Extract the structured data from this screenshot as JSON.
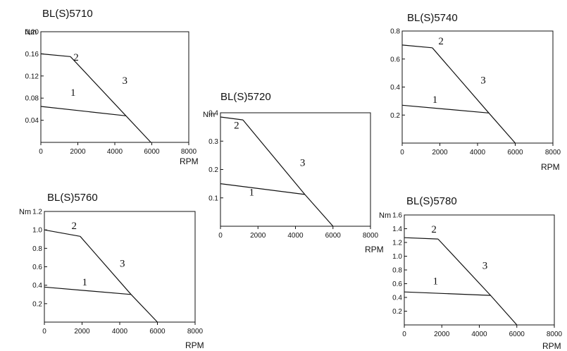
{
  "chart_data": [
    {
      "type": "line",
      "title": "BL(S)5710",
      "ylabel": "Nm",
      "xlabel": "RPM",
      "xlim": [
        0,
        8000
      ],
      "ylim": [
        0,
        0.2
      ],
      "xticks": [
        0,
        2000,
        4000,
        6000,
        8000
      ],
      "xtick_labels": [
        "0",
        "2000",
        "4000",
        "6000",
        "8000"
      ],
      "yticks": [
        0.04,
        0.08,
        0.12,
        0.16,
        0.2
      ],
      "ytick_labels": [
        "0.04",
        "0.08",
        "0.12",
        "0.16",
        "0,20"
      ],
      "series": [
        {
          "name": "1",
          "x": [
            0,
            4600
          ],
          "y": [
            0.065,
            0.048
          ]
        },
        {
          "name": "2",
          "x": [
            0,
            1600
          ],
          "y": [
            0.16,
            0.155
          ]
        },
        {
          "name": "3",
          "x": [
            1600,
            4600,
            5950
          ],
          "y": [
            0.155,
            0.048,
            0
          ]
        }
      ]
    },
    {
      "type": "line",
      "title": "BL(S)5720",
      "ylabel": "Nm",
      "xlabel": "RPM",
      "xlim": [
        0,
        8000
      ],
      "ylim": [
        0,
        0.4
      ],
      "xticks": [
        0,
        2000,
        4000,
        6000,
        8000
      ],
      "xtick_labels": [
        "0",
        "2000",
        "4000",
        "6000",
        "8000"
      ],
      "yticks": [
        0.1,
        0.2,
        0.3,
        0.4
      ],
      "ytick_labels": [
        "0.1",
        "0.2",
        "0.3",
        "0.4"
      ],
      "series": [
        {
          "name": "1",
          "x": [
            0,
            4500
          ],
          "y": [
            0.15,
            0.112
          ]
        },
        {
          "name": "2",
          "x": [
            0,
            1200
          ],
          "y": [
            0.385,
            0.375
          ]
        },
        {
          "name": "3",
          "x": [
            1200,
            4500,
            6000
          ],
          "y": [
            0.375,
            0.112,
            0
          ]
        }
      ]
    },
    {
      "type": "line",
      "title": "BL(S)5740",
      "ylabel": "",
      "xlabel": "RPM",
      "xlim": [
        0,
        8000
      ],
      "ylim": [
        0,
        0.8
      ],
      "xticks": [
        0,
        2000,
        4000,
        6000,
        8000
      ],
      "xtick_labels": [
        "0",
        "2000",
        "4000",
        "6000",
        "8000"
      ],
      "yticks": [
        0.2,
        0.4,
        0.6,
        0.8
      ],
      "ytick_labels": [
        "0.2",
        "0.4",
        "0.6",
        "0.8"
      ],
      "series": [
        {
          "name": "1",
          "x": [
            0,
            4600
          ],
          "y": [
            0.27,
            0.215
          ]
        },
        {
          "name": "2",
          "x": [
            0,
            1600
          ],
          "y": [
            0.7,
            0.68
          ]
        },
        {
          "name": "3",
          "x": [
            1600,
            4600,
            6000
          ],
          "y": [
            0.68,
            0.215,
            0
          ]
        }
      ]
    },
    {
      "type": "line",
      "title": "BL(S)5760",
      "ylabel": "Nm",
      "xlabel": "RPM",
      "xlim": [
        0,
        8000
      ],
      "ylim": [
        0,
        1.2
      ],
      "xticks": [
        0,
        2000,
        4000,
        6000,
        8000
      ],
      "xtick_labels": [
        "0",
        "2000",
        "4000",
        "6000",
        "8000"
      ],
      "yticks": [
        0.2,
        0.4,
        0.6,
        0.8,
        1.0,
        1.2
      ],
      "ytick_labels": [
        "0.2",
        "0.4",
        "0.6",
        "0.8",
        "1.0",
        "1.2"
      ],
      "series": [
        {
          "name": "1",
          "x": [
            0,
            4600
          ],
          "y": [
            0.38,
            0.3
          ]
        },
        {
          "name": "2",
          "x": [
            0,
            1900
          ],
          "y": [
            1.0,
            0.93
          ]
        },
        {
          "name": "3",
          "x": [
            1900,
            4600,
            6000
          ],
          "y": [
            0.93,
            0.3,
            0
          ]
        }
      ]
    },
    {
      "type": "line",
      "title": "BL(S)5780",
      "ylabel": "Nm",
      "xlabel": "RPM",
      "xlim": [
        0,
        8000
      ],
      "ylim": [
        0,
        1.6
      ],
      "xticks": [
        0,
        2000,
        4000,
        6000,
        8000
      ],
      "xtick_labels": [
        "0",
        "2000",
        "4000",
        "6000",
        "8000"
      ],
      "yticks": [
        0.2,
        0.4,
        0.6,
        0.8,
        1.0,
        1.2,
        1.4,
        1.6
      ],
      "ytick_labels": [
        "0.2",
        "0.4",
        "0.6",
        "0.8",
        "1.0",
        "1.2",
        "1.4",
        "1.6"
      ],
      "series": [
        {
          "name": "1",
          "x": [
            0,
            4600
          ],
          "y": [
            0.48,
            0.43
          ]
        },
        {
          "name": "2",
          "x": [
            0,
            1800
          ],
          "y": [
            1.27,
            1.25
          ]
        },
        {
          "name": "3",
          "x": [
            1800,
            4600,
            6000
          ],
          "y": [
            1.25,
            0.43,
            0
          ]
        }
      ]
    }
  ]
}
